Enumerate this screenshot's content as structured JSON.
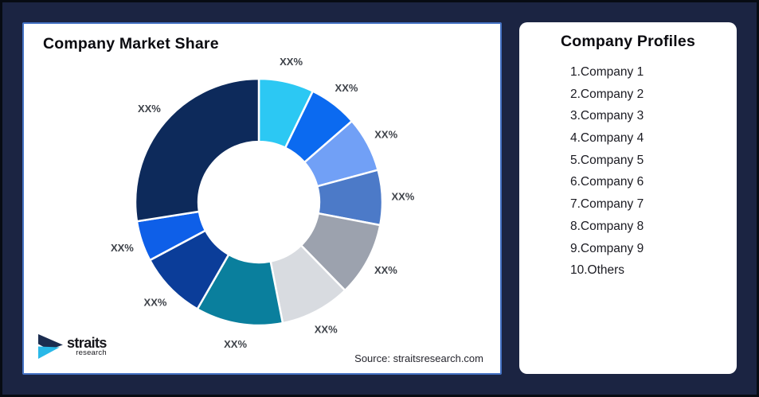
{
  "colors": {
    "bg-color": "#1B2442",
    "frame-border": "#070B13",
    "accent-border": "#4472C4",
    "title-color": "#0B0B10",
    "label-color": "#3E4249",
    "list-color": "#1B1B22",
    "source-color": "#26262E",
    "logo-text-color": "#17171C"
  },
  "brand": {
    "logo_name": "straits",
    "logo_sub": "research",
    "logo_navy": "#1B2C4F",
    "logo_cyan": "#29B8E8"
  },
  "left_card": {
    "title": "Company Market Share",
    "source_note": "Source: straitsresearch.com"
  },
  "right_card": {
    "title": "Company Profiles",
    "items": [
      "1.Company 1",
      "2.Company 2",
      "3.Company 3",
      "4.Company 4",
      "5.Company 5",
      "6.Company 6",
      "7.Company 7",
      "8.Company 8",
      "9.Company 9",
      "10.Others"
    ]
  },
  "chart_data": {
    "type": "pie",
    "subtype": "donut",
    "title": "Company Market Share",
    "note": "All slice data labels are placeholder text 'XX%'; share values below are estimated from arc angles",
    "start_angle_degrees": 0,
    "inner_radius_ratio": 0.49,
    "legend_position": "none",
    "segments": [
      {
        "index": 1,
        "label": "XX%",
        "value": 7.2,
        "color": "#2CC8F3"
      },
      {
        "index": 2,
        "label": "XX%",
        "value": 6.4,
        "color": "#0B6AF0"
      },
      {
        "index": 3,
        "label": "XX%",
        "value": 7.2,
        "color": "#71A0F6"
      },
      {
        "index": 4,
        "label": "XX%",
        "value": 7.2,
        "color": "#4C7AC8"
      },
      {
        "index": 5,
        "label": "XX%",
        "value": 9.7,
        "color": "#9CA2AE"
      },
      {
        "index": 6,
        "label": "XX%",
        "value": 9.2,
        "color": "#D8DBE0"
      },
      {
        "index": 7,
        "label": "XX%",
        "value": 11.4,
        "color": "#0A7F9D"
      },
      {
        "index": 8,
        "label": "XX%",
        "value": 8.9,
        "color": "#0B3D99"
      },
      {
        "index": 9,
        "label": "XX%",
        "value": 5.3,
        "color": "#0E5FE8"
      },
      {
        "index": 10,
        "label": "XX%",
        "value": 27.5,
        "color": "#0D2A5B"
      }
    ]
  }
}
